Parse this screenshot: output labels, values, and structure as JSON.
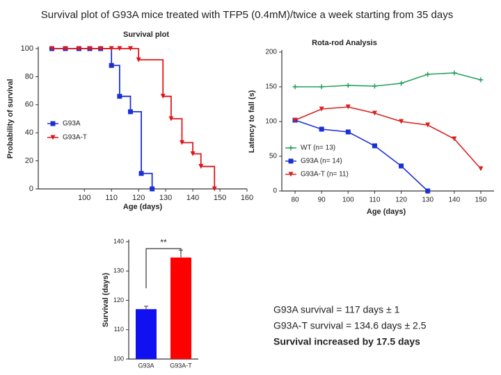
{
  "title": "Survival plot of G93A mice treated with TFP5 (0.4mM)/twice a week starting from 35 days",
  "text_lines": [
    "G93A survival = 117 days ± 1",
    "G93A-T survival = 134.6 days ± 2.5",
    "Survival increased by 17.5 days"
  ],
  "chart_data": [
    {
      "type": "step",
      "title": "Survival plot",
      "x_label": "Age (days)",
      "y_label": "Probability of survival",
      "xlim": [
        83,
        160
      ],
      "xticks": [
        100,
        110,
        120,
        130,
        140,
        150,
        160
      ],
      "ylim": [
        0,
        100
      ],
      "yticks": [
        0,
        20,
        40,
        60,
        80,
        100
      ],
      "series": [
        {
          "name": "G93A",
          "color": "#1a2fd6",
          "marker": "square",
          "x": [
            88,
            93,
            98,
            102,
            106,
            110,
            113,
            117,
            121,
            125
          ],
          "values": [
            100,
            100,
            100,
            100,
            100,
            88,
            66,
            55,
            11,
            0
          ]
        },
        {
          "name": "G93A-T",
          "color": "#e0161b",
          "marker": "triangle",
          "x": [
            88,
            93,
            98,
            102,
            106,
            110,
            113,
            117,
            120,
            129,
            132,
            136,
            140,
            143,
            148
          ],
          "values": [
            100,
            100,
            100,
            100,
            100,
            100,
            100,
            100,
            92,
            66,
            50,
            33,
            25,
            16,
            0
          ]
        }
      ]
    },
    {
      "type": "line",
      "title": "Rota-rod Analysis",
      "x_label": "Age (days)",
      "y_label": "Latency to fall (s)",
      "xlim": [
        75,
        155
      ],
      "xticks": [
        80,
        90,
        100,
        110,
        120,
        130,
        140,
        150
      ],
      "ylim": [
        0,
        200
      ],
      "yticks": [
        0,
        50,
        100,
        150,
        200
      ],
      "x": [
        80,
        90,
        100,
        110,
        120,
        130,
        140,
        150
      ],
      "series": [
        {
          "name": "WT (n= 13)",
          "color": "#1fa05a",
          "marker": "plus",
          "values": [
            150,
            150,
            152,
            151,
            155,
            168,
            170,
            160
          ]
        },
        {
          "name": "G93A (n= 14)",
          "color": "#1a2fd6",
          "marker": "square",
          "values": [
            102,
            89,
            85,
            65,
            36,
            0,
            null,
            null
          ]
        },
        {
          "name": "G93A-T (n= 11)",
          "color": "#d8201e",
          "marker": "triangle",
          "values": [
            102,
            118,
            121,
            112,
            100,
            95,
            75,
            32
          ]
        }
      ]
    },
    {
      "type": "bar",
      "y_label": "Survival (days)",
      "annotation": "**",
      "categories": [
        "G93A",
        "G93A-T"
      ],
      "values": [
        117,
        134.6
      ],
      "errors": [
        1,
        2.5
      ],
      "colors": [
        "#1010f0",
        "#ff0000"
      ],
      "ylim": [
        100,
        140
      ],
      "yticks": [
        100,
        110,
        120,
        130,
        140
      ]
    }
  ]
}
